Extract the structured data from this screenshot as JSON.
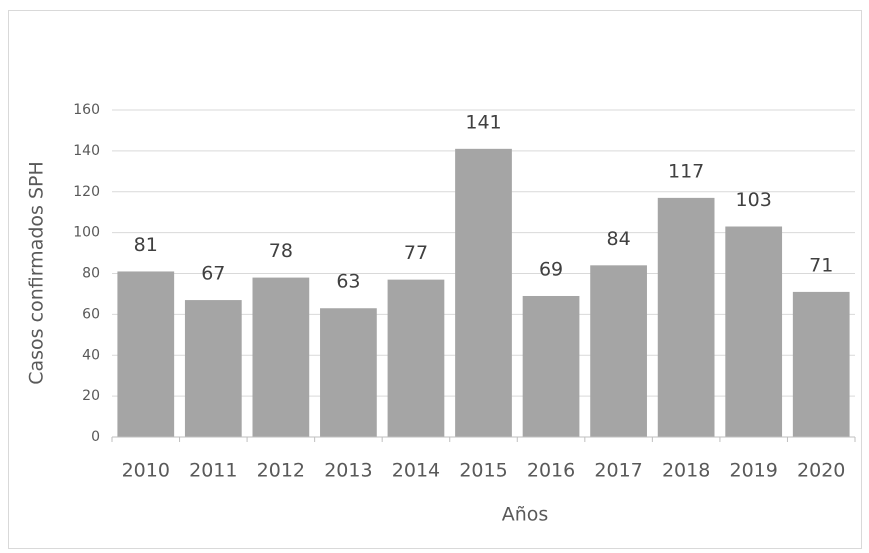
{
  "chart_data": {
    "type": "bar",
    "categories": [
      "2010",
      "2011",
      "2012",
      "2013",
      "2014",
      "2015",
      "2016",
      "2017",
      "2018",
      "2019",
      "2020"
    ],
    "values": [
      81,
      67,
      78,
      63,
      77,
      141,
      69,
      84,
      117,
      103,
      71
    ],
    "color": "#a5a5a5",
    "ylim": [
      0,
      160
    ],
    "yticks": [
      0,
      20,
      40,
      60,
      80,
      100,
      120,
      140,
      160
    ],
    "grid": true,
    "ylabel": "Casos confirmados SPH",
    "xlabel": "Años"
  }
}
